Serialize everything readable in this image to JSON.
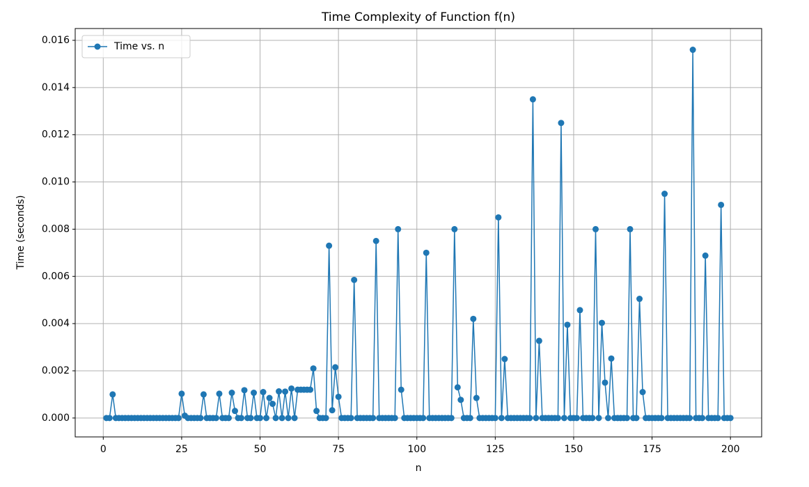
{
  "chart_data": {
    "type": "line",
    "title": "Time Complexity of Function f(n)",
    "x_label": "n",
    "y_label": "Time (seconds)",
    "x": [
      1,
      2,
      3,
      4,
      5,
      6,
      7,
      8,
      9,
      10,
      11,
      12,
      13,
      14,
      15,
      16,
      17,
      18,
      19,
      20,
      21,
      22,
      23,
      24,
      25,
      26,
      27,
      28,
      29,
      30,
      31,
      32,
      33,
      34,
      35,
      36,
      37,
      38,
      39,
      40,
      41,
      42,
      43,
      44,
      45,
      46,
      47,
      48,
      49,
      50,
      51,
      52,
      53,
      54,
      55,
      56,
      57,
      58,
      59,
      60,
      61,
      62,
      63,
      64,
      65,
      66,
      67,
      68,
      69,
      70,
      71,
      72,
      73,
      74,
      75,
      76,
      77,
      78,
      79,
      80,
      81,
      82,
      83,
      84,
      85,
      86,
      87,
      88,
      89,
      90,
      91,
      92,
      93,
      94,
      95,
      96,
      97,
      98,
      99,
      100,
      101,
      102,
      103,
      104,
      105,
      106,
      107,
      108,
      109,
      110,
      111,
      112,
      113,
      114,
      115,
      116,
      117,
      118,
      119,
      120,
      121,
      122,
      123,
      124,
      125,
      126,
      127,
      128,
      129,
      130,
      131,
      132,
      133,
      134,
      135,
      136,
      137,
      138,
      139,
      140,
      141,
      142,
      143,
      144,
      145,
      146,
      147,
      148,
      149,
      150,
      151,
      152,
      153,
      154,
      155,
      156,
      157,
      158,
      159,
      160,
      161,
      162,
      163,
      164,
      165,
      166,
      167,
      168,
      169,
      170,
      171,
      172,
      173,
      174,
      175,
      176,
      177,
      178,
      179,
      180,
      181,
      182,
      183,
      184,
      185,
      186,
      187,
      188,
      189,
      190,
      191,
      192,
      193,
      194,
      195,
      196,
      197,
      198,
      199,
      200
    ],
    "series": [
      {
        "name": "Time vs. n",
        "color": "#1f77b4",
        "values": [
          0,
          0,
          0.001,
          0,
          0,
          0,
          0,
          0,
          0,
          0,
          0,
          0,
          0,
          0,
          0,
          0,
          0,
          0,
          0,
          0,
          0,
          0,
          0,
          0,
          0.00103,
          0.0001,
          0,
          0,
          0,
          0,
          0,
          0.001,
          0,
          0,
          0,
          0,
          0.00103,
          0,
          0,
          0,
          0.00107,
          0.0003,
          0,
          0,
          0.00118,
          0,
          0,
          0.00107,
          0,
          0,
          0.0011,
          0,
          0.00085,
          0.0006,
          0,
          0.00113,
          0,
          0.00112,
          0,
          0.00125,
          0,
          0.0012,
          0.0012,
          0.0012,
          0.0012,
          0.0012,
          0.0021,
          0.0003,
          0,
          0,
          0,
          0.0073,
          0.00033,
          0.00215,
          0.0009,
          0,
          0,
          0,
          0,
          0.00585,
          0,
          0,
          0,
          0,
          0,
          0,
          0.0075,
          0,
          0,
          0,
          0,
          0,
          0,
          0.008,
          0.0012,
          0,
          0,
          0,
          0,
          0,
          0,
          0,
          0.007,
          0,
          0,
          0,
          0,
          0,
          0,
          0,
          0,
          0.008,
          0.0013,
          0.00077,
          0,
          0,
          0,
          0.0042,
          0.00085,
          0,
          0,
          0,
          0,
          0,
          0,
          0.0085,
          0,
          0.0025,
          0,
          0,
          0,
          0,
          0,
          0,
          0,
          0,
          0.0135,
          0,
          0.00327,
          0,
          0,
          0,
          0,
          0,
          0,
          0.0125,
          0,
          0.00395,
          0,
          0,
          0,
          0.00457,
          0,
          0,
          0,
          0,
          0.008,
          0,
          0.00403,
          0.0015,
          0,
          0.00252,
          0,
          0,
          0,
          0,
          0,
          0.008,
          0,
          0,
          0.00505,
          0.0011,
          0,
          0,
          0,
          0,
          0,
          0,
          0.0095,
          0,
          0,
          0,
          0,
          0,
          0,
          0,
          0,
          0.0156,
          0,
          0,
          0,
          0.00688,
          0,
          0,
          0,
          0,
          0.00903,
          0,
          0,
          0
        ]
      }
    ],
    "xlim": [
      -8.95,
      209.95
    ],
    "xticks": [
      0,
      25,
      50,
      75,
      100,
      125,
      150,
      175,
      200
    ],
    "ylim": [
      -0.0008,
      0.0165
    ],
    "yticks": [
      {
        "value": 0,
        "label": "0.000"
      },
      {
        "value": 0.002,
        "label": "0.002"
      },
      {
        "value": 0.004,
        "label": "0.004"
      },
      {
        "value": 0.006,
        "label": "0.006"
      },
      {
        "value": 0.008,
        "label": "0.008"
      },
      {
        "value": 0.01,
        "label": "0.010"
      },
      {
        "value": 0.012,
        "label": "0.012"
      },
      {
        "value": 0.014,
        "label": "0.014"
      },
      {
        "value": 0.016,
        "label": "0.016"
      }
    ],
    "grid": true,
    "legend": "upper left"
  }
}
